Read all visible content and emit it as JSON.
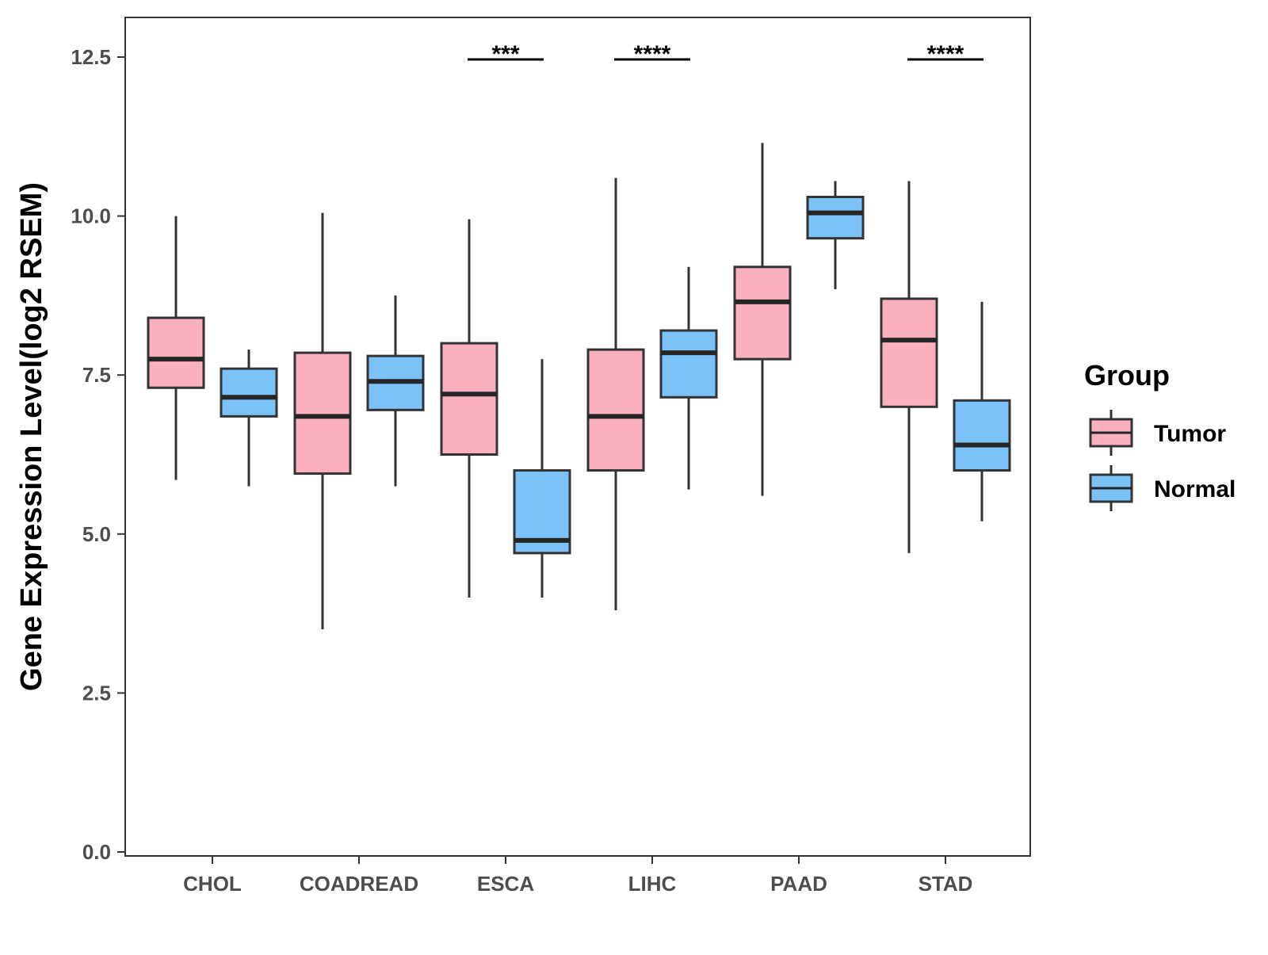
{
  "chart_data": {
    "type": "boxplot",
    "title": "",
    "xlabel": "",
    "ylabel": "Gene Expression Level(log2 RSEM)",
    "ylim": [
      0,
      13
    ],
    "yticks": [
      0.0,
      2.5,
      5.0,
      7.5,
      10.0,
      12.5
    ],
    "ytick_labels": [
      "0.0",
      "2.5",
      "5.0",
      "7.5",
      "10.0",
      "12.5"
    ],
    "categories": [
      "CHOL",
      "COADREAD",
      "ESCA",
      "LIHC",
      "PAAD",
      "STAD"
    ],
    "legend": {
      "title": "Group",
      "position": "right",
      "entries": [
        {
          "name": "Tumor",
          "color": "#fbb0c0"
        },
        {
          "name": "Normal",
          "color": "#7bc2f8"
        }
      ]
    },
    "series": [
      {
        "name": "Tumor",
        "color": "#fbb0c0",
        "boxes": [
          {
            "category": "CHOL",
            "min": 5.85,
            "q1": 7.3,
            "median": 7.75,
            "q3": 8.4,
            "max": 10.0
          },
          {
            "category": "COADREAD",
            "min": 3.5,
            "q1": 5.95,
            "median": 6.85,
            "q3": 7.85,
            "max": 10.05
          },
          {
            "category": "ESCA",
            "min": 4.0,
            "q1": 6.25,
            "median": 7.2,
            "q3": 8.0,
            "max": 9.95
          },
          {
            "category": "LIHC",
            "min": 3.8,
            "q1": 6.0,
            "median": 6.85,
            "q3": 7.9,
            "max": 10.6
          },
          {
            "category": "PAAD",
            "min": 5.6,
            "q1": 7.75,
            "median": 8.65,
            "q3": 9.2,
            "max": 11.15
          },
          {
            "category": "STAD",
            "min": 4.7,
            "q1": 7.0,
            "median": 8.05,
            "q3": 8.7,
            "max": 10.55
          }
        ]
      },
      {
        "name": "Normal",
        "color": "#7bc2f8",
        "boxes": [
          {
            "category": "CHOL",
            "min": 5.75,
            "q1": 6.85,
            "median": 7.15,
            "q3": 7.6,
            "max": 7.9
          },
          {
            "category": "COADREAD",
            "min": 5.75,
            "q1": 6.95,
            "median": 7.4,
            "q3": 7.8,
            "max": 8.75
          },
          {
            "category": "ESCA",
            "min": 4.0,
            "q1": 4.7,
            "median": 4.9,
            "q3": 6.0,
            "max": 7.75
          },
          {
            "category": "LIHC",
            "min": 5.7,
            "q1": 7.15,
            "median": 7.85,
            "q3": 8.2,
            "max": 9.2
          },
          {
            "category": "PAAD",
            "min": 8.85,
            "q1": 9.65,
            "median": 10.05,
            "q3": 10.3,
            "max": 10.55
          },
          {
            "category": "STAD",
            "min": 5.2,
            "q1": 6.0,
            "median": 6.4,
            "q3": 7.1,
            "max": 8.65
          }
        ]
      }
    ],
    "annotations": [
      {
        "category": "ESCA",
        "label": "***",
        "y": 12.5
      },
      {
        "category": "LIHC",
        "label": "****",
        "y": 12.5
      },
      {
        "category": "STAD",
        "label": "****",
        "y": 12.5
      }
    ]
  }
}
